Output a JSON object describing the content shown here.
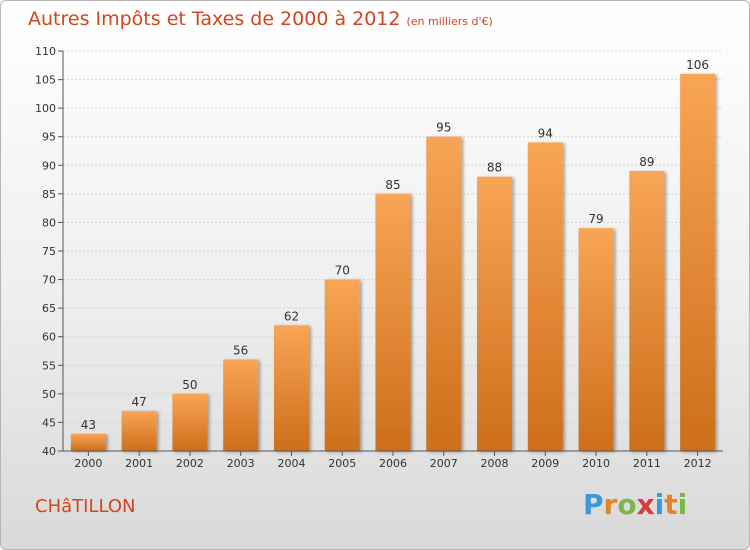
{
  "title": "Autres Impôts et Taxes de 2000 à 2012",
  "unit_label": "(en milliers d'€)",
  "commune": "CHâTILLON",
  "logo": {
    "letters": [
      "P",
      "r",
      "o",
      "x",
      "i",
      "t",
      "i"
    ],
    "colors": [
      "#3a9ad9",
      "#e2832b",
      "#7ab648",
      "#d93b3b",
      "#3a9ad9",
      "#e2832b",
      "#7ab648"
    ]
  },
  "colors": {
    "bar_top": "#f8a555",
    "bar_bottom": "#cd6e1a",
    "accent_text": "#d2451f"
  },
  "chart_data": {
    "type": "bar",
    "categories": [
      "2000",
      "2001",
      "2002",
      "2003",
      "2004",
      "2005",
      "2006",
      "2007",
      "2008",
      "2009",
      "2010",
      "2011",
      "2012"
    ],
    "values": [
      43,
      47,
      50,
      56,
      62,
      70,
      85,
      95,
      88,
      94,
      79,
      89,
      106
    ],
    "data_labels": [
      "43",
      "47",
      "50",
      "56",
      "62",
      "70",
      "85",
      "95",
      "88",
      "94",
      "79",
      "89",
      "106"
    ],
    "yticks": [
      40,
      45,
      50,
      55,
      60,
      65,
      70,
      75,
      80,
      85,
      90,
      95,
      100,
      105,
      110
    ],
    "ylim": [
      40,
      110
    ],
    "grid": true,
    "legend": "none"
  }
}
